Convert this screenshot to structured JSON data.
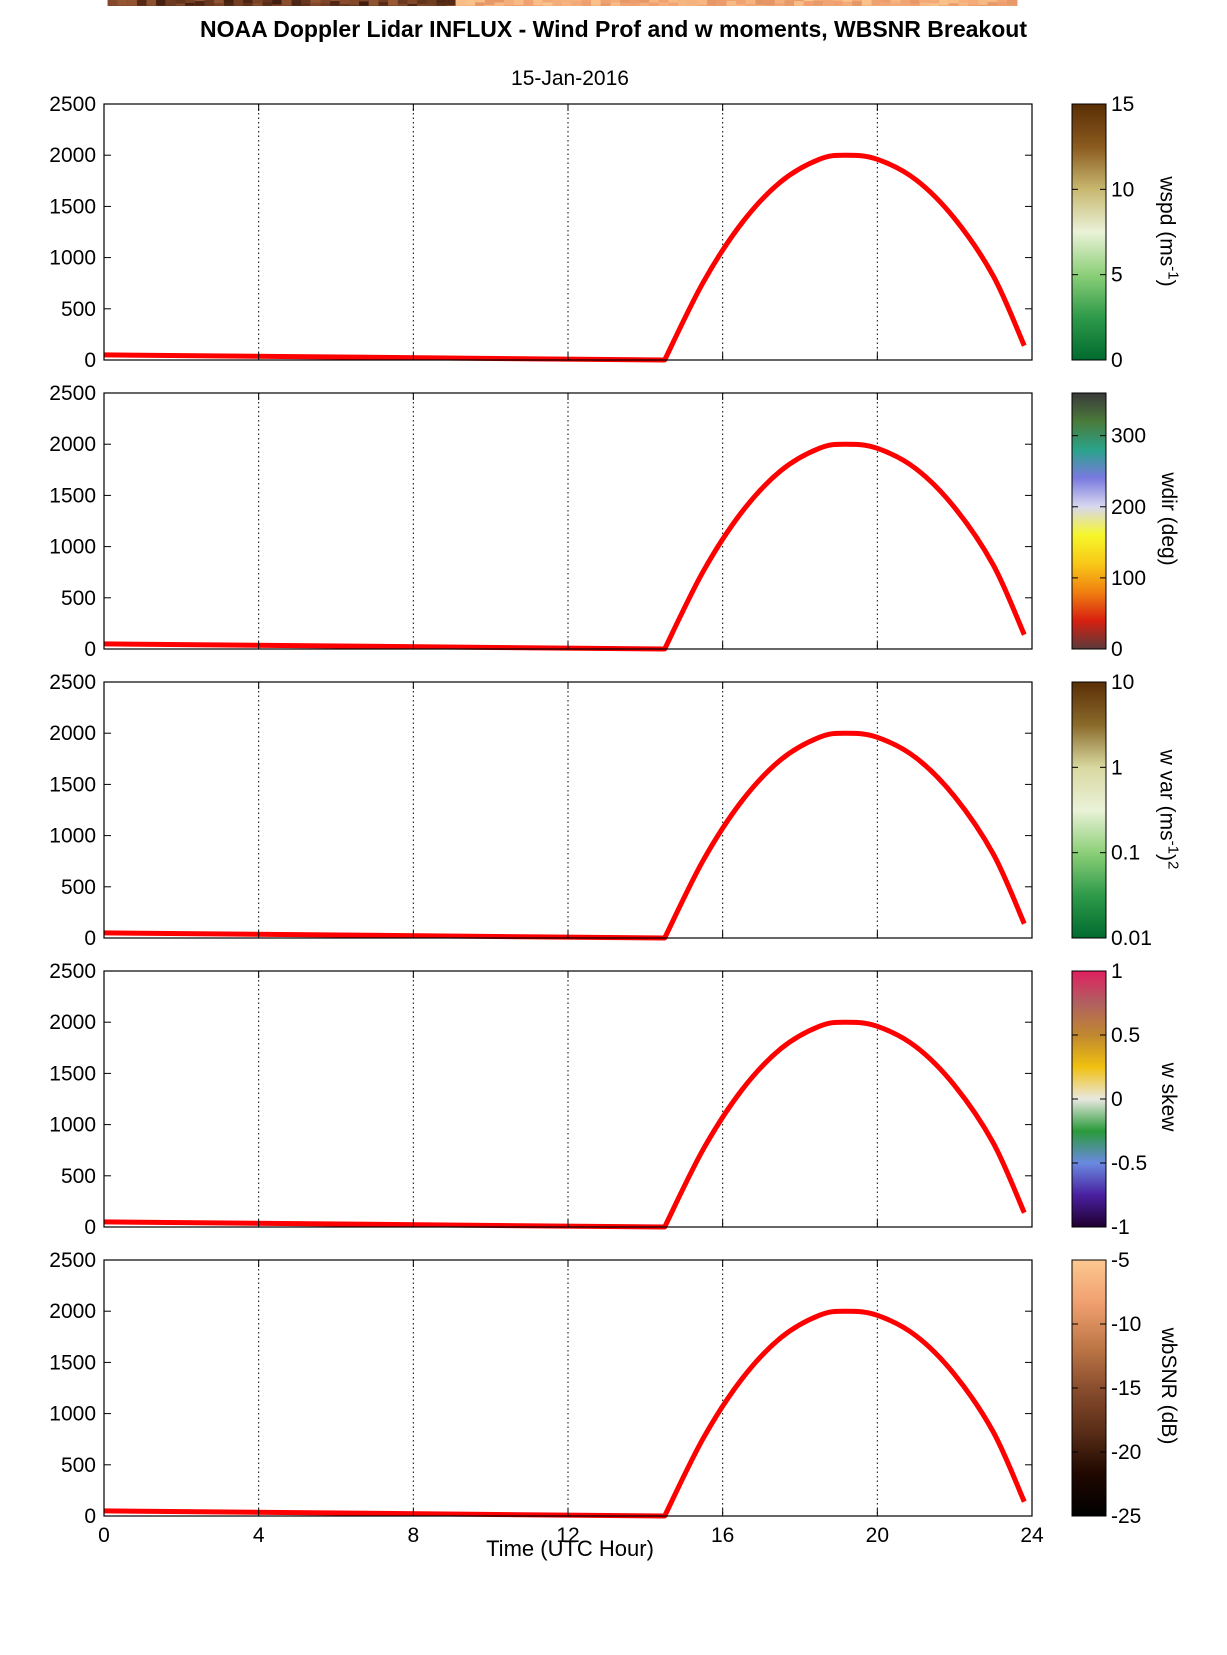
{
  "title": "NOAA Doppler Lidar INFLUX - Wind Prof and w moments, WBSNR Breakout",
  "date": "15-Jan-2016",
  "xlabel": "Time (UTC Hour)",
  "colors": {
    "sun_curve": "#ff0000",
    "grid": "#000000"
  },
  "chart_data": {
    "type": "heatmap",
    "x": {
      "label": "Time (UTC Hour)",
      "range": [
        0,
        24
      ],
      "ticks": [
        "0",
        "4",
        "8",
        "12",
        "16",
        "20",
        "24"
      ],
      "grid": "dotted vertical at 4,8,12,16,20"
    },
    "y": {
      "range": [
        0,
        2500
      ],
      "ticks": [
        "0",
        "500",
        "1000",
        "1500",
        "2000",
        "2500"
      ]
    },
    "sun_elevation_curve": {
      "color": "#ff0000",
      "x": [
        14.5,
        15.5,
        16.5,
        17.5,
        18.5,
        19.2,
        20,
        21,
        22,
        23,
        23.8
      ],
      "y": [
        0,
        760,
        1340,
        1740,
        1960,
        2000,
        1960,
        1760,
        1380,
        820,
        140
      ],
      "night_baseline_y": 50
    },
    "panels": [
      {
        "name": "wspd",
        "colorbar_label_parts": [
          "wspd (ms",
          "-1",
          ")"
        ],
        "colorbar_ticks": [
          "15",
          "10",
          "5",
          "0"
        ],
        "colorscale": [
          "#5a2e06",
          "#8a5a1e",
          "#c8b870",
          "#eaf2d8",
          "#8ccf78",
          "#2e9a4a",
          "#006b2e"
        ],
        "scale": "linear",
        "range": [
          0,
          15
        ]
      },
      {
        "name": "wdir",
        "colorbar_label_parts": [
          "wdir (deg)"
        ],
        "colorbar_ticks": [
          "300",
          "200",
          "100",
          "0"
        ],
        "colorscale": [
          "#3a3a3a",
          "#4a7a3a",
          "#2aa38a",
          "#7a7ae0",
          "#d8d8f0",
          "#f6f62a",
          "#f8c818",
          "#f08010",
          "#d82010",
          "#5a3a3a"
        ],
        "scale": "linear",
        "range": [
          0,
          360
        ]
      },
      {
        "name": "w var",
        "colorbar_label_parts": [
          "w var (ms",
          "-1",
          ")",
          "2"
        ],
        "colorbar_ticks": [
          "10",
          "1",
          "0.1",
          "0.01"
        ],
        "colorscale": [
          "#5a2e06",
          "#8a6a2a",
          "#d8d8a0",
          "#eaf2d8",
          "#8ccf78",
          "#2e9a4a",
          "#006b2e"
        ],
        "scale": "log",
        "range": [
          0.01,
          10
        ]
      },
      {
        "name": "w skew",
        "colorbar_label_parts": [
          "w skew"
        ],
        "colorbar_ticks": [
          "1",
          "0.5",
          "0",
          "-0.5",
          "-1"
        ],
        "colorscale": [
          "#e02060",
          "#b06060",
          "#c08830",
          "#f0c010",
          "#e8e8e0",
          "#2a9a3a",
          "#6a8ae0",
          "#4a20a0",
          "#200030"
        ],
        "scale": "linear",
        "range": [
          -1,
          1
        ]
      },
      {
        "name": "wbSNR",
        "colorbar_label_parts": [
          "wbSNR (dB)"
        ],
        "colorbar_ticks": [
          "-5",
          "-10",
          "-15",
          "-20",
          "-25"
        ],
        "colorscale": [
          "#fcc890",
          "#f0a070",
          "#c07848",
          "#8a4e2e",
          "#5a2e18",
          "#200800",
          "#000000"
        ],
        "scale": "linear",
        "range": [
          -25,
          -5
        ]
      }
    ]
  }
}
